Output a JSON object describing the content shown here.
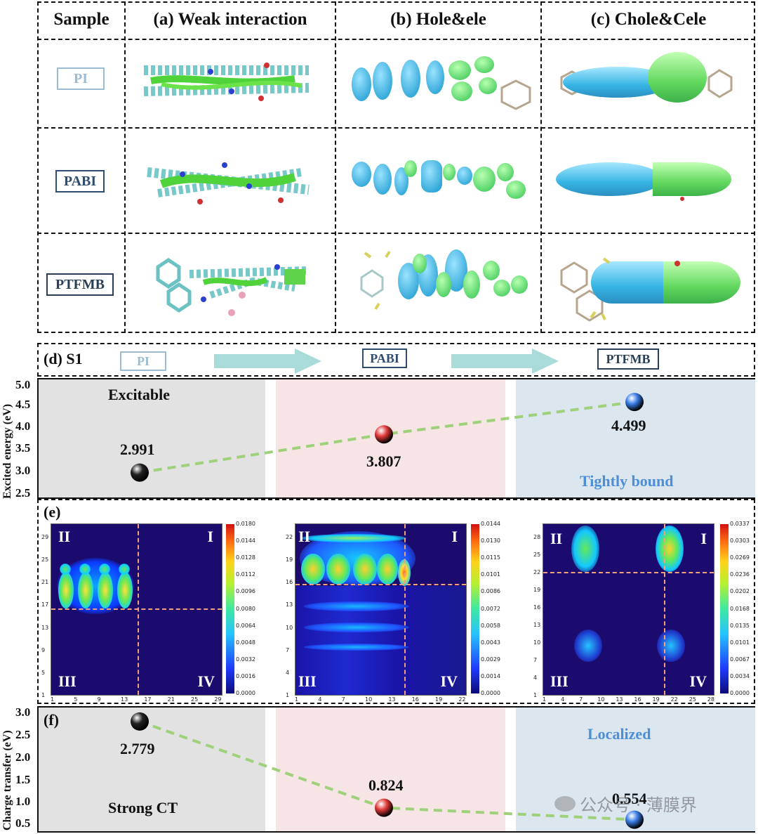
{
  "table": {
    "headers": [
      "Sample",
      "(a) Weak interaction",
      "(b) Hole&ele",
      "(c) Chole&Cele"
    ],
    "samples": [
      "PI",
      "PABI",
      "PTFMB"
    ]
  },
  "panel_d": {
    "label": "(d) S1",
    "flow": [
      "PI",
      "PABI",
      "PTFMB"
    ],
    "ylabel": "Excited energy (eV)",
    "yticks": [
      "5.0",
      "4.5",
      "4.0",
      "3.5",
      "3.0",
      "2.5"
    ],
    "band_text": [
      "Excitable",
      "Tightly bound"
    ],
    "value_labels": [
      "2.991",
      "3.807",
      "4.499"
    ]
  },
  "panel_e": {
    "label": "(e)",
    "quadrants": [
      "II",
      "I",
      "III",
      "IV"
    ],
    "maps": [
      {
        "sample": "PI",
        "colorbar": [
          "0.0180",
          "0.0144",
          "0.0128",
          "0.0112",
          "0.0096",
          "0.0080",
          "0.0064",
          "0.0048",
          "0.0032",
          "0.0016",
          "0.0000"
        ],
        "xticks": [
          "1",
          "5",
          "9",
          "13",
          "17",
          "21",
          "25",
          "29"
        ],
        "yticks": [
          "29",
          "25",
          "21",
          "17",
          "13",
          "9",
          "5",
          "1"
        ]
      },
      {
        "sample": "PABI",
        "colorbar": [
          "0.0144",
          "0.0130",
          "0.0115",
          "0.0101",
          "0.0086",
          "0.0072",
          "0.0058",
          "0.0043",
          "0.0029",
          "0.0014",
          "0.0000"
        ],
        "xticks": [
          "1",
          "4",
          "7",
          "10",
          "13",
          "16",
          "19",
          "22"
        ],
        "yticks": [
          "22",
          "19",
          "16",
          "13",
          "10",
          "7",
          "4",
          "1"
        ]
      },
      {
        "sample": "PTFMB",
        "colorbar": [
          "0.0337",
          "0.0303",
          "0.0269",
          "0.0236",
          "0.0202",
          "0.0168",
          "0.0135",
          "0.0101",
          "0.0067",
          "0.0034",
          "0.0000"
        ],
        "xticks": [
          "1",
          "4",
          "7",
          "10",
          "13",
          "16",
          "19",
          "22",
          "25",
          "28"
        ],
        "yticks": [
          "28",
          "25",
          "22",
          "19",
          "16",
          "13",
          "10",
          "7",
          "4",
          "1"
        ]
      }
    ]
  },
  "panel_f": {
    "label": "(f)",
    "ylabel": "Charge transfer (eV)",
    "yticks": [
      "3.0",
      "2.5",
      "2.0",
      "1.5",
      "1.0",
      "0.5"
    ],
    "band_text": [
      "Strong CT",
      "Localized"
    ],
    "value_labels": [
      "2.779",
      "0.824",
      "0.554"
    ]
  },
  "watermark": "公众号 · 薄膜界",
  "chart_data": [
    {
      "type": "line",
      "title": "(d) S1",
      "ylabel": "Excited energy (eV)",
      "categories": [
        "PI",
        "PABI",
        "PTFMB"
      ],
      "values": [
        2.991,
        3.807,
        4.499
      ],
      "ylim": [
        2.5,
        5.0
      ]
    },
    {
      "type": "line",
      "title": "(f)",
      "ylabel": "Charge transfer (eV)",
      "categories": [
        "PI",
        "PABI",
        "PTFMB"
      ],
      "values": [
        2.779,
        0.824,
        0.554
      ],
      "ylim": [
        0.4,
        3.0
      ]
    }
  ],
  "colors": {
    "pi": "#8fb3c9",
    "pabi": "#2f4d6e",
    "ptfmb": "#2a3f57",
    "hole": "#35b3e0",
    "ele": "#5fe07a",
    "accent": "#4d8fd6",
    "line": "#9fd17a"
  }
}
